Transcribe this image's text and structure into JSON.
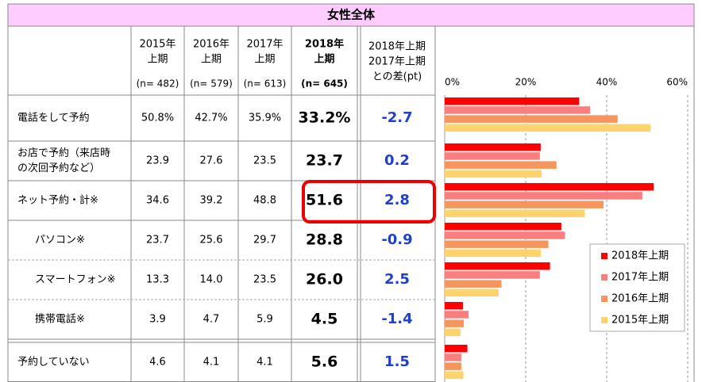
{
  "header": {
    "title": "女性全体"
  },
  "table": {
    "columns": [
      {
        "lines": [
          "2015年",
          "上期"
        ],
        "n": "(n= 482)"
      },
      {
        "lines": [
          "2016年",
          "上期"
        ],
        "n": "(n= 579)"
      },
      {
        "lines": [
          "2017年",
          "上期"
        ],
        "n": "(n= 613)"
      },
      {
        "lines": [
          "2018年",
          "上期"
        ],
        "n": "(n= 645)"
      }
    ],
    "diff_header": [
      "2018年上期",
      "2017年上期",
      "との差(pt)"
    ],
    "rows": [
      [
        "電話をして予約"
      ],
      [
        "お店で予約（来店時",
        "の次回予約など）"
      ],
      [
        "ネット予約・計※"
      ],
      [
        "パソコン※"
      ],
      [
        "スマートフォン※"
      ],
      [
        "携帯電話※"
      ],
      [
        "予約していない"
      ]
    ],
    "diff": [
      -2.7,
      0.2,
      2.8,
      -0.9,
      2.5,
      -1.4,
      1.5
    ]
  },
  "chart_data": {
    "type": "bar",
    "orientation": "horizontal",
    "xlim": [
      0,
      60
    ],
    "xticks": [
      {
        "value": 0,
        "label": "0%"
      },
      {
        "value": 20,
        "label": "20%"
      },
      {
        "value": 40,
        "label": "40%"
      },
      {
        "value": 60,
        "label": "60%"
      }
    ],
    "grid": true,
    "legend": "lower right",
    "series": [
      {
        "name": "2015年上期",
        "color": "#ffd36b",
        "values": [
          50.8,
          23.9,
          34.6,
          23.7,
          13.3,
          3.9,
          4.6
        ],
        "value_labels": [
          "50.8%",
          "23.9",
          "34.6",
          "23.7",
          "13.3",
          "3.9",
          "4.6"
        ]
      },
      {
        "name": "2016年上期",
        "color": "#f7955e",
        "values": [
          42.7,
          27.6,
          39.2,
          25.6,
          14.0,
          4.7,
          4.1
        ],
        "value_labels": [
          "42.7%",
          "27.6",
          "39.2",
          "25.6",
          "14.0",
          "4.7",
          "4.1"
        ]
      },
      {
        "name": "2017年上期",
        "color": "#f77f80",
        "values": [
          35.9,
          23.5,
          48.8,
          29.7,
          23.5,
          5.9,
          4.1
        ],
        "value_labels": [
          "35.9%",
          "23.5",
          "48.8",
          "29.7",
          "23.5",
          "5.9",
          "4.1"
        ]
      },
      {
        "name": "2018年上期",
        "color": "#ff0000",
        "values": [
          33.2,
          23.7,
          51.6,
          28.8,
          26.0,
          4.5,
          5.6
        ],
        "value_labels": [
          "33.2%",
          "23.7",
          "51.6",
          "28.8",
          "26.0",
          "4.5",
          "5.6"
        ]
      }
    ]
  }
}
